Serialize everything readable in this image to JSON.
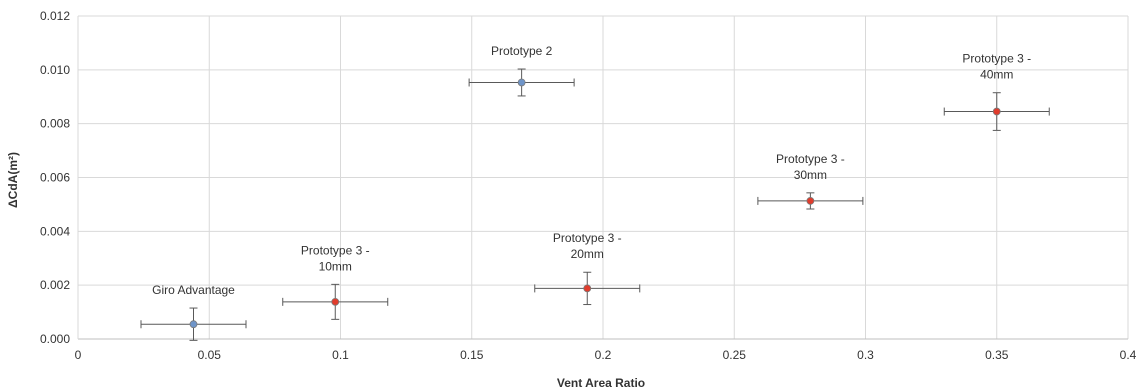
{
  "chart_data": {
    "type": "scatter",
    "title": "",
    "xlabel": "Vent Area Ratio",
    "ylabel": "ΔCdA(m²)",
    "xlim": [
      0,
      0.4
    ],
    "ylim": [
      0,
      0.012
    ],
    "x_ticks": [
      "0",
      "0.05",
      "0.1",
      "0.15",
      "0.2",
      "0.25",
      "0.3",
      "0.35",
      "0.4"
    ],
    "y_ticks": [
      "0.000",
      "0.002",
      "0.004",
      "0.006",
      "0.008",
      "0.010",
      "0.012"
    ],
    "grid": true,
    "legend": "none",
    "points": [
      {
        "label": "Giro Advantage",
        "x": 0.044,
        "y": 0.00055,
        "x_err": 0.02,
        "y_err": 0.0006,
        "color": "#6f95c9"
      },
      {
        "label": "Prototype 3 - 10mm",
        "x": 0.098,
        "y": 0.00138,
        "x_err": 0.02,
        "y_err": 0.00065,
        "color": "#e03c2c"
      },
      {
        "label": "Prototype 2",
        "x": 0.169,
        "y": 0.00953,
        "x_err": 0.02,
        "y_err": 0.0005,
        "color": "#6f95c9"
      },
      {
        "label": "Prototype 3 - 20mm",
        "x": 0.194,
        "y": 0.00188,
        "x_err": 0.02,
        "y_err": 0.0006,
        "color": "#e03c2c"
      },
      {
        "label": "Prototype 3 - 30mm",
        "x": 0.279,
        "y": 0.00513,
        "x_err": 0.02,
        "y_err": 0.0003,
        "color": "#e03c2c"
      },
      {
        "label": "Prototype 3 - 40mm",
        "x": 0.35,
        "y": 0.00845,
        "x_err": 0.02,
        "y_err": 0.0007,
        "color": "#e03c2c"
      }
    ]
  }
}
